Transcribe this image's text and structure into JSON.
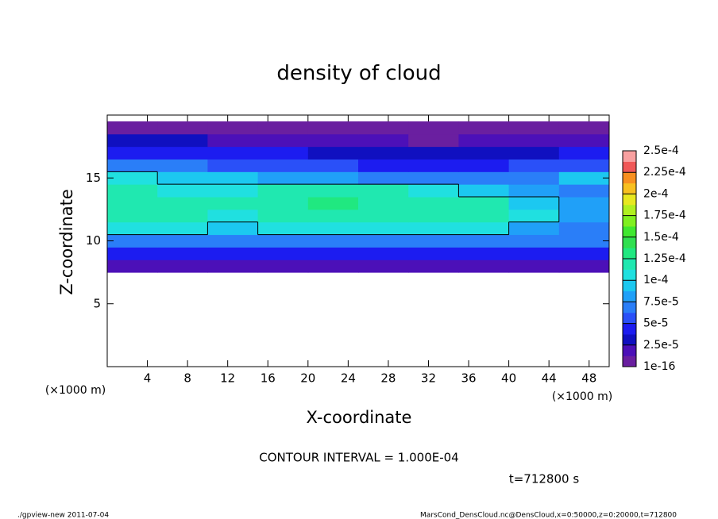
{
  "chart_data": {
    "type": "heatmap",
    "title": "density of cloud",
    "x_label": "X-coordinate",
    "y_label": "Z-coordinate",
    "x_unit_left": "(×1000 m)",
    "x_unit_right": "(×1000 m)",
    "annotation": "CONTOUR INTERVAL = 1.000E-04",
    "time_label": "t=712800 s",
    "footer_left": "./gpview-new  2011-07-04",
    "footer_right": "MarsCond_DensCloud.nc@DensCloud,x=0:50000,z=0:20000,t=712800",
    "xlim": [
      0,
      50
    ],
    "xticks": [
      4,
      8,
      12,
      16,
      20,
      24,
      28,
      32,
      36,
      40,
      44,
      48
    ],
    "ylim": [
      0,
      20
    ],
    "yticks": [
      5,
      10,
      15
    ],
    "x": [
      2.5,
      7.5,
      12.5,
      17.5,
      22.5,
      27.5,
      32.5,
      37.5,
      42.5,
      47.5
    ],
    "y": [
      8,
      9,
      10,
      11,
      12,
      13,
      14,
      15,
      16,
      17,
      18,
      19
    ],
    "values": [
      [
        1.5e-05,
        1.8e-05,
        1.6e-05,
        1.5e-05,
        1.7e-05,
        1.6e-05,
        1.5e-05,
        1.6e-05,
        1.8e-05,
        1.5e-05
      ],
      [
        4e-05,
        4.5e-05,
        4e-05,
        4.2e-05,
        4e-05,
        4.3e-05,
        4e-05,
        4.2e-05,
        4e-05,
        3.8e-05
      ],
      [
        7e-05,
        7e-05,
        7.2e-05,
        7e-05,
        7.5e-05,
        7e-05,
        6.8e-05,
        7.2e-05,
        7e-05,
        6.5e-05
      ],
      [
        0.000105,
        0.000102,
        9.5e-05,
        0.000108,
        0.00011,
        0.000106,
        0.000104,
        0.000102,
        8e-05,
        7.5e-05
      ],
      [
        0.000118,
        0.000115,
        0.00011,
        0.000122,
        0.000125,
        0.00012,
        0.000118,
        0.000115,
        0.000105,
        8.5e-05
      ],
      [
        0.00012,
        0.00012,
        0.000115,
        0.000125,
        0.000128,
        0.000125,
        0.00012,
        0.000115,
        0.0001,
        8e-05
      ],
      [
        0.000115,
        0.000112,
        0.000108,
        0.000118,
        0.00012,
        0.000115,
        0.000108,
        9e-05,
        8e-05,
        7e-05
      ],
      [
        0.000105,
        9.5e-05,
        9e-05,
        8.5e-05,
        8e-05,
        7.5e-05,
        7e-05,
        6.8e-05,
        7e-05,
        9e-05
      ],
      [
        7e-05,
        6.5e-05,
        6e-05,
        6e-05,
        5.5e-05,
        5e-05,
        5e-05,
        4.8e-05,
        6e-05,
        6e-05
      ],
      [
        4.5e-05,
        4e-05,
        4e-05,
        3.8e-05,
        3.5e-05,
        3e-05,
        2.8e-05,
        3e-05,
        3.5e-05,
        4e-05
      ],
      [
        3e-05,
        2.8e-05,
        2.5e-05,
        2.2e-05,
        2e-05,
        1.5e-05,
        1.2e-05,
        1.5e-05,
        2e-05,
        2.5e-05
      ],
      [
        1.2e-05,
        1e-05,
        1e-05,
        8e-06,
        6e-06,
        5e-06,
        5e-06,
        6e-06,
        8e-06,
        1e-05
      ]
    ],
    "contour_interval": 0.0001,
    "colorbar": {
      "lim": [
        1e-16,
        0.00025
      ],
      "ticks": [
        1e-16,
        {
          "value": 2.5e-05,
          "label": "2.5e-5"
        },
        {
          "value": 5e-05,
          "label": "5e-5"
        },
        {
          "value": 7.5e-05,
          "label": "7.5e-5"
        },
        {
          "value": 0.0001,
          "label": "1e-4"
        },
        {
          "value": 0.000125,
          "label": "1.25e-4"
        },
        {
          "value": 0.00015,
          "label": "1.5e-4"
        },
        {
          "value": 0.000175,
          "label": "1.75e-4"
        },
        {
          "value": 0.0002,
          "label": "2e-4"
        },
        {
          "value": 0.000225,
          "label": "2.25e-4"
        },
        {
          "value": 0.00025,
          "label": "2.5e-4"
        }
      ],
      "colors": [
        "#6a1fa0",
        "#4c10b8",
        "#1010c0",
        "#1c1cf0",
        "#2a50f8",
        "#2a7ef8",
        "#20a0f8",
        "#1cc8f0",
        "#20e0e0",
        "#20e8b0",
        "#20e880",
        "#30e050",
        "#40e830",
        "#80f020",
        "#b0f020",
        "#e8e820",
        "#f8c020",
        "#f89020",
        "#f05858",
        "#f8a0a0"
      ]
    }
  }
}
